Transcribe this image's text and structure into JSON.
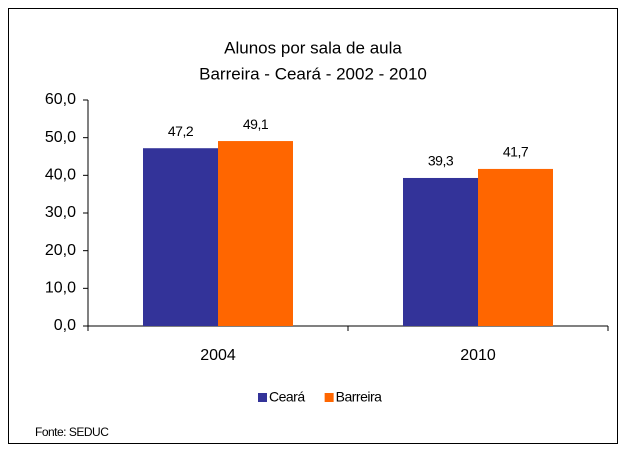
{
  "chart_data": {
    "type": "bar",
    "title": "Alunos por sala de aula",
    "subtitle": "Barreira - Ceará - 2002 - 2010",
    "categories": [
      "2004",
      "2010"
    ],
    "series": [
      {
        "name": "Ceará",
        "color": "#333399",
        "values": [
          47.2,
          39.3
        ],
        "value_labels": [
          "47,2",
          "39,3"
        ]
      },
      {
        "name": "Barreira",
        "color": "#ff6600",
        "values": [
          49.1,
          41.7
        ],
        "value_labels": [
          "49,1",
          "41,7"
        ]
      }
    ],
    "ylim": [
      0,
      60
    ],
    "yticks": [
      {
        "value": 0,
        "label": "0,0"
      },
      {
        "value": 10,
        "label": "10,0"
      },
      {
        "value": 20,
        "label": "20,0"
      },
      {
        "value": 30,
        "label": "30,0"
      },
      {
        "value": 40,
        "label": "40,0"
      },
      {
        "value": 50,
        "label": "50,0"
      },
      {
        "value": 60,
        "label": "60,0"
      }
    ],
    "grid": false,
    "legend": "bottom",
    "source": "Fonte: SEDUC"
  }
}
